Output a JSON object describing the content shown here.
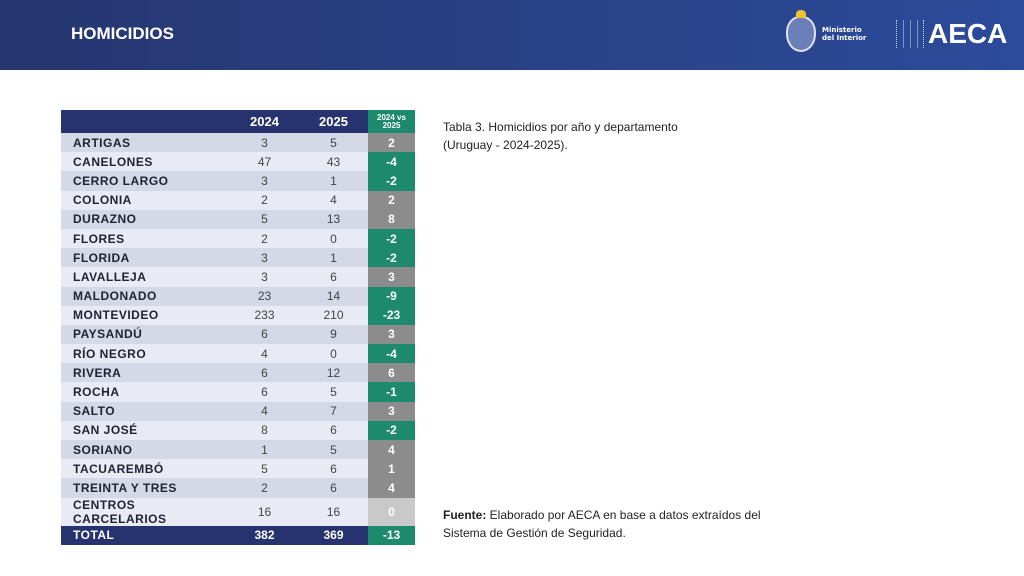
{
  "header": {
    "title": "HOMICIDIOS",
    "ministerio_line1": "Ministerio",
    "ministerio_line2": "del Interior",
    "aeca": "AECA"
  },
  "colors": {
    "header": "#26366f",
    "decrease": "#1e8a6d",
    "increase": "#8c8c8c",
    "no_change": "#c9c9c9"
  },
  "table": {
    "columns": [
      "",
      "2024",
      "2025",
      "2024 vs 2025"
    ],
    "rows": [
      [
        "ARTIGAS",
        3,
        5,
        2
      ],
      [
        "CANELONES",
        47,
        43,
        -4
      ],
      [
        "CERRO LARGO",
        3,
        1,
        -2
      ],
      [
        "COLONIA",
        2,
        4,
        2
      ],
      [
        "DURAZNO",
        5,
        13,
        8
      ],
      [
        "FLORES",
        2,
        0,
        -2
      ],
      [
        "FLORIDA",
        3,
        1,
        -2
      ],
      [
        "LAVALLEJA",
        3,
        6,
        3
      ],
      [
        "MALDONADO",
        23,
        14,
        -9
      ],
      [
        "MONTEVIDEO",
        233,
        210,
        -23
      ],
      [
        "PAYSANDÚ",
        6,
        9,
        3
      ],
      [
        "RÍO NEGRO",
        4,
        0,
        -4
      ],
      [
        "RIVERA",
        6,
        12,
        6
      ],
      [
        "ROCHA",
        6,
        5,
        -1
      ],
      [
        "SALTO",
        4,
        7,
        3
      ],
      [
        "SAN JOSÉ",
        8,
        6,
        -2
      ],
      [
        "SORIANO",
        1,
        5,
        4
      ],
      [
        "TACUAREMBÓ",
        5,
        6,
        1
      ],
      [
        "TREINTA Y TRES",
        2,
        6,
        4
      ],
      [
        "CENTROS CARCELARIOS",
        16,
        16,
        0
      ]
    ],
    "total": [
      "TOTAL",
      382,
      369,
      -13
    ]
  },
  "caption": "Tabla 3. Homicidios por año y departamento (Uruguay - 2024-2025).",
  "source_label": "Fuente:",
  "source_text": " Elaborado por AECA en base a datos extraídos del Sistema de Gestión de Seguridad."
}
